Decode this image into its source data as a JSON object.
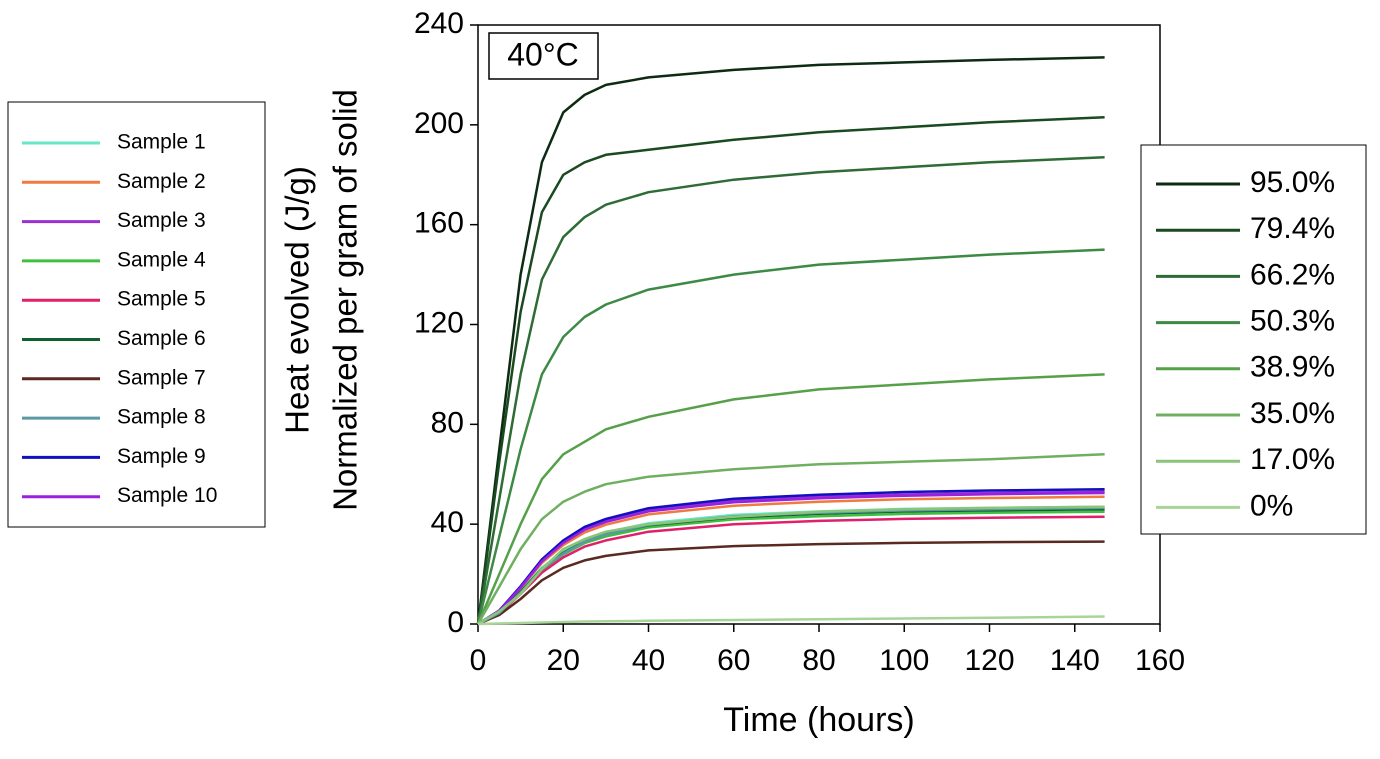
{
  "chart_data": {
    "type": "line",
    "annotation": "40°C",
    "xlabel": "Time (hours)",
    "ylabel": [
      "Heat evolved (J/g)",
      "Normalized per gram of solid"
    ],
    "xlim": [
      0,
      160
    ],
    "xticks": [
      0,
      20,
      40,
      60,
      80,
      100,
      120,
      140,
      160
    ],
    "ylim": [
      0,
      240
    ],
    "yticks": [
      0,
      40,
      80,
      120,
      160,
      200,
      240
    ],
    "x": [
      0,
      5,
      10,
      15,
      20,
      25,
      30,
      40,
      60,
      80,
      100,
      120,
      147
    ],
    "series": [
      {
        "name": "Sample 1",
        "color": "#66e8c8",
        "values": [
          0,
          4.7,
          13.2,
          22.6,
          29.1,
          33.8,
          36.7,
          40.4,
          43.7,
          45.1,
          46.1,
          46.5,
          47
        ]
      },
      {
        "name": "Sample 2",
        "color": "#f07a40",
        "values": [
          0,
          5.1,
          14.3,
          24.5,
          31.6,
          36.7,
          39.8,
          43.9,
          47.4,
          49,
          50,
          50.5,
          51
        ]
      },
      {
        "name": "Sample 3",
        "color": "#9a30d0",
        "values": [
          0,
          5.3,
          14.8,
          25.4,
          32.9,
          38.2,
          41.3,
          45.6,
          49.3,
          50.9,
          51.9,
          52.5,
          53
        ]
      },
      {
        "name": "Sample 4",
        "color": "#40c040",
        "values": [
          0,
          4.5,
          12.6,
          21.6,
          27.9,
          32.4,
          35.1,
          38.7,
          41.9,
          43.2,
          44.1,
          44.6,
          45
        ]
      },
      {
        "name": "Sample 5",
        "color": "#e0206a",
        "values": [
          0,
          4.3,
          12,
          20.6,
          26.7,
          31,
          33.5,
          37,
          40,
          41.3,
          42.1,
          42.6,
          43
        ]
      },
      {
        "name": "Sample 6",
        "color": "#106030",
        "values": [
          0,
          4.6,
          12.9,
          22.1,
          28.5,
          33.1,
          35.9,
          39.6,
          42.8,
          44.2,
          45.1,
          45.5,
          46
        ]
      },
      {
        "name": "Sample 7",
        "color": "#5a2a20",
        "values": [
          0,
          3.6,
          10,
          17.5,
          22.5,
          25.5,
          27.3,
          29.5,
          31.2,
          32,
          32.5,
          32.8,
          33
        ]
      },
      {
        "name": "Sample 8",
        "color": "#5a9aa0",
        "values": [
          0,
          4.4,
          12.5,
          21.8,
          28.2,
          33,
          35.8,
          39.8,
          43.2,
          44.6,
          45.5,
          46,
          46.5
        ]
      },
      {
        "name": "Sample 9",
        "color": "#1010c0",
        "values": [
          0,
          5.4,
          15.1,
          25.9,
          33.5,
          38.9,
          42.1,
          46.4,
          50.2,
          51.8,
          52.9,
          53.5,
          54
        ]
      },
      {
        "name": "Sample 10",
        "color": "#9a20e0",
        "values": [
          0,
          5.2,
          14.6,
          25.1,
          32.5,
          37.8,
          40.9,
          45.1,
          48.8,
          50.4,
          51.4,
          52,
          52.5
        ]
      },
      {
        "name": "95.0%",
        "color": "#0d2a12",
        "values": [
          0,
          70,
          140,
          185,
          205,
          212,
          216,
          219,
          222,
          224,
          225,
          226,
          227
        ]
      },
      {
        "name": "79.4%",
        "color": "#1a4a20",
        "values": [
          0,
          65,
          125,
          165,
          180,
          185,
          188,
          190,
          194,
          197,
          199,
          201,
          203
        ]
      },
      {
        "name": "66.2%",
        "color": "#2e6b35",
        "values": [
          0,
          50,
          100,
          138,
          155,
          163,
          168,
          173,
          178,
          181,
          183,
          185,
          187
        ]
      },
      {
        "name": "50.3%",
        "color": "#3d8a45",
        "values": [
          0,
          35,
          70,
          100,
          115,
          123,
          128,
          134,
          140,
          144,
          146,
          148,
          150
        ]
      },
      {
        "name": "38.9%",
        "color": "#55a048",
        "values": [
          0,
          20,
          40,
          58,
          68,
          73,
          78,
          83,
          90,
          94,
          96,
          98,
          100
        ]
      },
      {
        "name": "35.0%",
        "color": "#6fb060",
        "values": [
          0,
          15,
          30,
          42,
          49,
          53,
          56,
          59,
          62,
          64,
          65,
          66,
          68
        ]
      },
      {
        "name": "17.0%",
        "color": "#8cc47a",
        "values": [
          0,
          5,
          12,
          22,
          30,
          34,
          37,
          40,
          43,
          45,
          46,
          46.5,
          47
        ]
      },
      {
        "name": "0%",
        "color": "#a8d49a",
        "values": [
          0,
          0.2,
          0.4,
          0.6,
          0.8,
          1,
          1.1,
          1.3,
          1.6,
          1.9,
          2.2,
          2.5,
          3
        ]
      }
    ]
  }
}
